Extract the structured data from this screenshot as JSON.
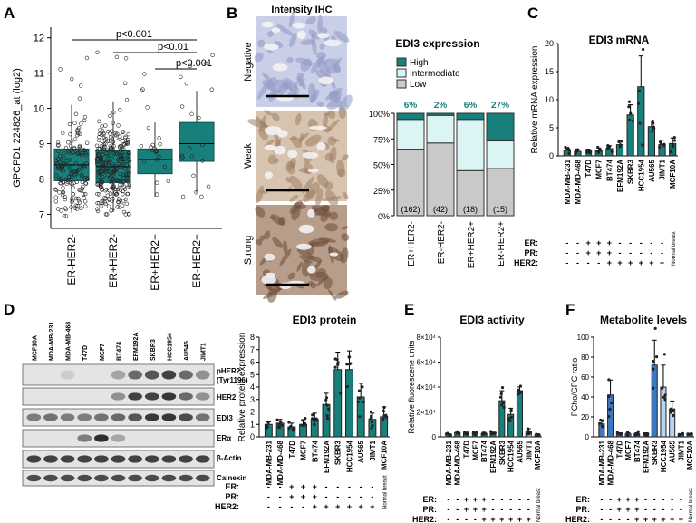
{
  "colors": {
    "teal": "#17807b",
    "light_cyan": "#dbf5f4",
    "grey": "#c9c9c9",
    "navy": "#1f4e8c",
    "light_blue": "#b6d4f0",
    "pale_green": "#bfe3c3"
  },
  "panel_letters": [
    "A",
    "B",
    "C",
    "D",
    "E",
    "F"
  ],
  "panelA": {
    "ylabel": "GPCPD1 224826_at (log2)",
    "ticks": [
      "7",
      "8",
      "9",
      "10",
      "11",
      "12"
    ],
    "sig": [
      "p<0.001",
      "p<0.01",
      "p<0.001"
    ]
  },
  "panelB": {
    "title": "Intensity IHC",
    "row_labels": [
      "Negative",
      "Weak",
      "Strong"
    ],
    "chart_title": "EDI3 expression",
    "legend": [
      "High",
      "Intermediate",
      "Low"
    ],
    "yticks": [
      "0%",
      "25%",
      "50%",
      "75%",
      "100%"
    ],
    "pct_labels": [
      "6%",
      "2%",
      "6%",
      "27%"
    ],
    "n_labels": [
      "(162)",
      "(42)",
      "(18)",
      "(15)"
    ]
  },
  "panelC": {
    "title": "EDI3 mRNA",
    "ylabel": "Relative mRNA expression",
    "ticks": [
      "0",
      "5",
      "10",
      "15",
      "20"
    ]
  },
  "panelD": {
    "lane_labels": [
      "MCF10A",
      "MDA-MB-231",
      "MDA-MB-468",
      "T47D",
      "MCF7",
      "BT474",
      "EFM192A",
      "SKBR3",
      "HCC1954",
      "AU545",
      "JIMT1"
    ],
    "band_labels": [
      "pHER2",
      "(Tyr1196)",
      "HER2",
      "EDI3",
      "ERα",
      "β-Actin",
      "Calnexin"
    ],
    "chart_title": "EDI3 protein",
    "ylabel": "Relative protein expression",
    "ticks": [
      "0",
      "1",
      "2",
      "3",
      "4",
      "5",
      "6",
      "7",
      "8"
    ]
  },
  "panelE": {
    "title": "EDI3 activity",
    "ylabel": "Relative fluorescene units",
    "ticks": [
      "0",
      "2×10⁴",
      "4×10⁴",
      "6×10⁴",
      "8×10⁴"
    ]
  },
  "panelF": {
    "title": "Metabolite levels",
    "ylabel": "PCho/GPC ratio",
    "ticks": [
      "0",
      "20",
      "40",
      "60",
      "80",
      "100"
    ]
  },
  "cell_lines": [
    "MDA-MB-231",
    "MDA-MD-468",
    "T47D",
    "MCF7",
    "BT474",
    "EFM192A",
    "SKBR3",
    "HCC1954",
    "AU565",
    "JIMT1",
    "MCF10A"
  ],
  "cell_lines_D": [
    "MDA-MB-231",
    "MDA-MD-468",
    "T47D",
    "MCF7",
    "BT474",
    "EFM192A",
    "SKBR3",
    "HCC1954",
    "AU565",
    "JIMT1",
    "MCF10A"
  ],
  "status_rows": [
    {
      "label": "ER:",
      "signs": [
        "-",
        "-",
        "+",
        "+",
        "+",
        "-",
        "-",
        "-",
        "-",
        "-"
      ]
    },
    {
      "label": "PR:",
      "signs": [
        "-",
        "-",
        "+",
        "+",
        "+",
        "-",
        "-",
        "-",
        "-",
        "-"
      ]
    },
    {
      "label": "HER2:",
      "signs": [
        "-",
        "-",
        "-",
        "-",
        "+",
        "+",
        "+",
        "+",
        "+",
        "+"
      ]
    }
  ],
  "normal_breast": "Normal breast",
  "chart_data": [
    {
      "panel": "A",
      "type": "box",
      "categories": [
        "ER-HER2-",
        "ER+HER2-",
        "ER+HER2+",
        "ER-HER2+"
      ],
      "ylabel": "GPCPD1 224826_at (log2)",
      "ylim": [
        6.6,
        12.3
      ],
      "series": [
        {
          "q1": 7.95,
          "median": 8.4,
          "q3": 8.85,
          "whisker_low": 7.05,
          "whisker_high": 10.1
        },
        {
          "q1": 7.9,
          "median": 8.35,
          "q3": 8.8,
          "whisker_low": 7.1,
          "whisker_high": 10.2
        },
        {
          "q1": 8.15,
          "median": 8.55,
          "q3": 8.85,
          "whisker_low": 7.5,
          "whisker_high": 9.6
        },
        {
          "q1": 8.5,
          "median": 9.0,
          "q3": 9.6,
          "whisker_low": 7.6,
          "whisker_high": 10.5
        }
      ],
      "annotations": [
        "p<0.001",
        "p<0.01",
        "p<0.001"
      ]
    },
    {
      "panel": "B",
      "type": "stacked_bar",
      "categories": [
        "ER+HER2-",
        "ER-HER2-",
        "ER+HER2+",
        "ER-HER2+"
      ],
      "series": [
        {
          "name": "High",
          "values": [
            6,
            2,
            6,
            27
          ]
        },
        {
          "name": "Intermediate",
          "values": [
            29,
            27,
            50,
            27
          ]
        },
        {
          "name": "Low",
          "values": [
            65,
            71,
            44,
            46
          ]
        }
      ],
      "n": [
        162,
        42,
        18,
        15
      ]
    },
    {
      "panel": "C",
      "type": "bar",
      "title": "EDI3 mRNA",
      "categories": [
        "MDA-MB-231",
        "MDA-MD-468",
        "T47D",
        "MCF7",
        "BT474",
        "EFM192A",
        "SKBR3",
        "HCC1954",
        "AU565",
        "JIMT1",
        "MCF10A"
      ],
      "values": [
        1.0,
        0.8,
        0.9,
        1.0,
        1.3,
        2.0,
        7.3,
        12.3,
        5.2,
        2.0,
        2.2
      ],
      "errors": [
        0.3,
        0.3,
        0.3,
        0.4,
        0.5,
        0.6,
        1.8,
        5.5,
        1.0,
        0.8,
        1.0
      ],
      "ylabel": "Relative mRNA expression",
      "ylim": [
        0,
        20
      ]
    },
    {
      "panel": "D",
      "type": "bar",
      "title": "EDI3 protein",
      "categories": [
        "MDA-MB-231",
        "MDA-MD-468",
        "T47D",
        "MCF7",
        "BT474",
        "EFM192A",
        "SKBR3",
        "HCC1954",
        "AU565",
        "JIMT1",
        "MCF10A"
      ],
      "values": [
        1.0,
        1.1,
        0.8,
        1.0,
        1.4,
        2.6,
        5.4,
        5.4,
        3.2,
        1.4,
        1.6
      ],
      "errors": [
        0.2,
        0.3,
        0.3,
        0.3,
        0.5,
        0.9,
        1.4,
        1.5,
        1.1,
        0.5,
        0.8
      ],
      "ylabel": "Relative protein expression",
      "ylim": [
        0,
        8
      ]
    },
    {
      "panel": "E",
      "type": "bar",
      "title": "EDI3 activity",
      "categories": [
        "MDA-MB-231",
        "MDA-MD-468",
        "T47D",
        "MCF7",
        "BT474",
        "EFM192A",
        "SKBR3",
        "HCC1954",
        "AU565",
        "JIMT1",
        "MCF10A"
      ],
      "values": [
        2000,
        3500,
        3000,
        2800,
        2800,
        3500,
        29000,
        18000,
        37000,
        4500,
        1500
      ],
      "errors": [
        600,
        1000,
        800,
        800,
        800,
        1200,
        8000,
        5000,
        3000,
        2000,
        500
      ],
      "ylabel": "Relative fluorescene units",
      "ylim": [
        0,
        80000
      ]
    },
    {
      "panel": "F",
      "type": "bar",
      "title": "Metabolite levels",
      "categories": [
        "MDA-MB-231",
        "MDA-MD-468",
        "T47D",
        "MCF7",
        "BT474",
        "EFM192A",
        "SKBR3",
        "HCC1954",
        "AU565",
        "JIMT1",
        "MCF10A"
      ],
      "values": [
        13,
        42,
        3,
        3,
        3,
        3,
        72,
        50,
        28,
        2,
        2
      ],
      "errors": [
        3,
        15,
        1,
        1,
        1,
        1,
        25,
        22,
        8,
        1,
        1
      ],
      "ylabel": "PCho/GPC ratio",
      "ylim": [
        0,
        100
      ]
    }
  ]
}
